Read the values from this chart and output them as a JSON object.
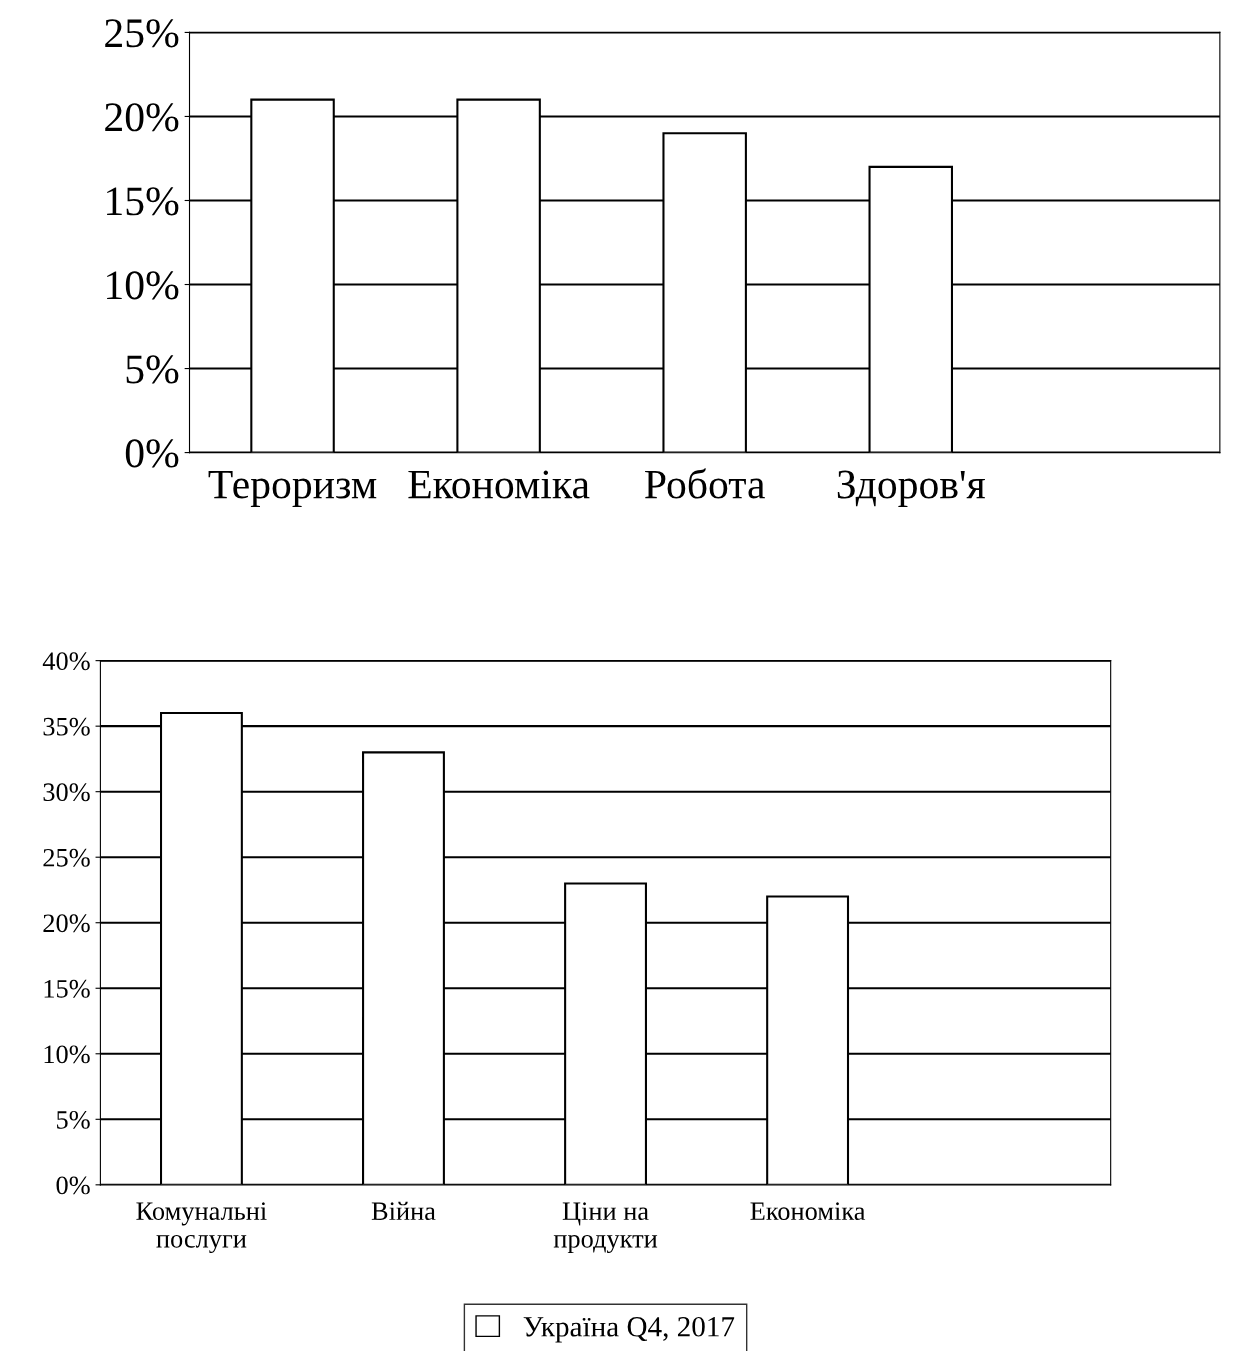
{
  "chart_data": [
    {
      "type": "bar",
      "categories": [
        "Тероризм",
        "Економіка",
        "Робота",
        "Здоров'я"
      ],
      "series": [
        {
          "color": "#ffffff",
          "values": [
            21,
            21,
            19,
            17
          ]
        }
      ],
      "ylim": [
        0,
        25
      ],
      "yticks": [
        {
          "value": 0,
          "label": "0%"
        },
        {
          "value": 5,
          "label": "5%"
        },
        {
          "value": 10,
          "label": "10%"
        },
        {
          "value": 15,
          "label": "15%"
        },
        {
          "value": 20,
          "label": "20%"
        },
        {
          "value": 25,
          "label": "25%"
        }
      ],
      "grid": "y",
      "legend": false
    },
    {
      "type": "bar",
      "categories": [
        "Комунальні\nпослуги",
        "Війна",
        "Ціни на\nпродукти",
        "Економіка"
      ],
      "series": [
        {
          "name": "Україна Q4, 2017",
          "color": "#ffffff",
          "values": [
            36,
            33,
            23,
            22
          ]
        }
      ],
      "ylim": [
        0,
        40
      ],
      "yticks": [
        {
          "value": 0,
          "label": "0%"
        },
        {
          "value": 5,
          "label": "5%"
        },
        {
          "value": 10,
          "label": "10%"
        },
        {
          "value": 15,
          "label": "15%"
        },
        {
          "value": 20,
          "label": "20%"
        },
        {
          "value": 25,
          "label": "25%"
        },
        {
          "value": 30,
          "label": "30%"
        },
        {
          "value": 35,
          "label": "35%"
        },
        {
          "value": 40,
          "label": "40%"
        }
      ],
      "grid": "y",
      "legend": "bottom"
    }
  ]
}
